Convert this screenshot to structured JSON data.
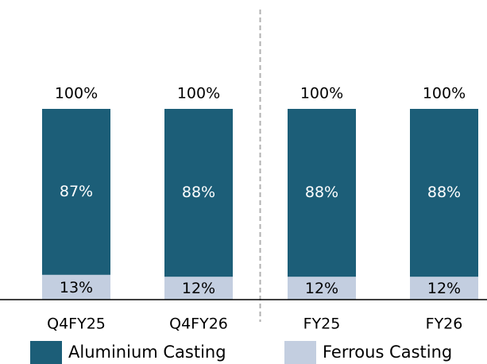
{
  "chart_data": {
    "type": "bar",
    "stacked": true,
    "categories": [
      "Q4FY25",
      "Q4FY26",
      "FY25",
      "FY26"
    ],
    "series": [
      {
        "name": "Aluminium Casting",
        "values": [
          87,
          88,
          88,
          88
        ],
        "labels": [
          "87%",
          "88%",
          "88%",
          "88%"
        ],
        "color": "#1c5e78"
      },
      {
        "name": "Ferrous Casting",
        "values": [
          13,
          12,
          12,
          12
        ],
        "labels": [
          "13%",
          "12%",
          "12%",
          "12%"
        ],
        "color": "#c3cee0"
      }
    ],
    "totals": [
      "100%",
      "100%",
      "100%",
      "100%"
    ],
    "ylim": [
      0,
      100
    ],
    "grid": false,
    "divider_after_category": 1,
    "legend": {
      "placement": "bottom"
    },
    "colors": {
      "label_on_dark": "#ffffff",
      "text": "#000000",
      "axis": "#000000",
      "divider": "#b0b0b0"
    }
  }
}
